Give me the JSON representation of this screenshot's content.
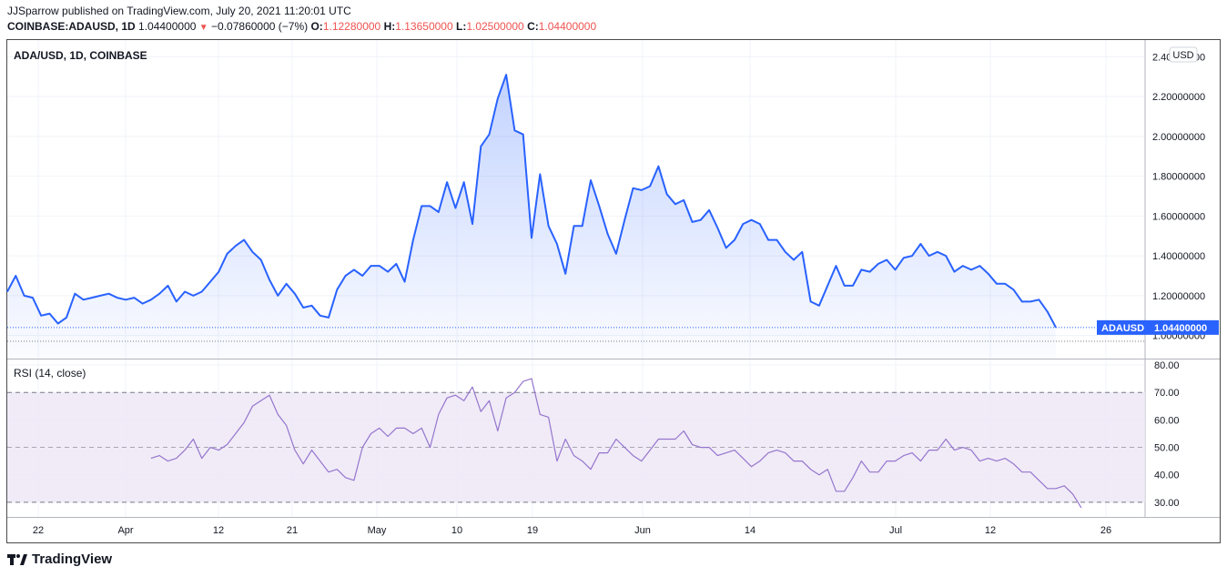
{
  "header": {
    "published": "JJSparrow published on TradingView.com, July 20, 2021 11:20:01 UTC",
    "symbol": "COINBASE:ADAUSD, 1D",
    "last": "1.04400000",
    "change": "−0.07860000 (−7%)",
    "o_label": "O:",
    "o_value": "1.12280000",
    "h_label": "H:",
    "h_value": "1.13650000",
    "l_label": "L:",
    "l_value": "1.02500000",
    "c_label": "C:",
    "c_value": "1.04400000"
  },
  "footer": {
    "brand": "TradingView"
  },
  "colors": {
    "price_line": "#2962ff",
    "rsi_line": "#9575cd",
    "rsi_band": "#ede7f6",
    "down": "#ef5350"
  },
  "chart_data": [
    {
      "type": "area",
      "title": "ADA/USD, 1D, COINBASE",
      "currency": "USD",
      "last_price_label": "ADAUSD",
      "last_price": "1.04400000",
      "ylim": [
        0.98,
        2.42
      ],
      "y_ticks": [
        "1.00000000",
        "1.20000000",
        "1.40000000",
        "1.60000000",
        "1.80000000",
        "2.00000000",
        "2.20000000",
        "2.40000000"
      ],
      "x_ticks": [
        "22",
        "Apr",
        "12",
        "21",
        "May",
        "10",
        "19",
        "Jun",
        "14",
        "Jul",
        "12",
        "26"
      ],
      "values": [
        1.22,
        1.3,
        1.2,
        1.19,
        1.1,
        1.11,
        1.06,
        1.09,
        1.21,
        1.18,
        1.19,
        1.2,
        1.21,
        1.19,
        1.18,
        1.19,
        1.16,
        1.18,
        1.21,
        1.25,
        1.17,
        1.22,
        1.2,
        1.22,
        1.27,
        1.32,
        1.41,
        1.45,
        1.48,
        1.42,
        1.38,
        1.28,
        1.2,
        1.26,
        1.21,
        1.14,
        1.15,
        1.1,
        1.09,
        1.23,
        1.3,
        1.33,
        1.3,
        1.35,
        1.35,
        1.32,
        1.36,
        1.27,
        1.48,
        1.65,
        1.65,
        1.62,
        1.77,
        1.64,
        1.77,
        1.56,
        1.95,
        2.01,
        2.19,
        2.31,
        2.03,
        2.01,
        1.49,
        1.81,
        1.55,
        1.46,
        1.31,
        1.55,
        1.55,
        1.78,
        1.65,
        1.51,
        1.41,
        1.58,
        1.74,
        1.73,
        1.75,
        1.85,
        1.71,
        1.66,
        1.68,
        1.57,
        1.58,
        1.63,
        1.54,
        1.44,
        1.48,
        1.56,
        1.58,
        1.56,
        1.48,
        1.48,
        1.42,
        1.38,
        1.42,
        1.17,
        1.15,
        1.25,
        1.35,
        1.25,
        1.25,
        1.33,
        1.32,
        1.36,
        1.38,
        1.33,
        1.39,
        1.4,
        1.46,
        1.4,
        1.42,
        1.4,
        1.32,
        1.35,
        1.33,
        1.35,
        1.31,
        1.26,
        1.26,
        1.23,
        1.17,
        1.17,
        1.18,
        1.12,
        1.04
      ]
    },
    {
      "type": "line",
      "title": "RSI (14, close)",
      "ylim": [
        25,
        82
      ],
      "y_ticks": [
        "30.00",
        "40.00",
        "50.00",
        "60.00",
        "70.00",
        "80.00"
      ],
      "band": [
        30,
        70
      ],
      "values": [
        null,
        null,
        null,
        null,
        null,
        null,
        null,
        null,
        null,
        null,
        null,
        null,
        null,
        null,
        null,
        null,
        null,
        46,
        47,
        45,
        46,
        49,
        53,
        46,
        50,
        49,
        51,
        55,
        59,
        65,
        67,
        69,
        62,
        58,
        49,
        44,
        49,
        45,
        41,
        42,
        39,
        38,
        50,
        55,
        57,
        54,
        57,
        57,
        55,
        57,
        50,
        62,
        68,
        69,
        67,
        72,
        63,
        67,
        56,
        68,
        70,
        74,
        75,
        62,
        61,
        45,
        53,
        47,
        45,
        42,
        48,
        48,
        53,
        50,
        47,
        45,
        49,
        53,
        53,
        53,
        56,
        51,
        50,
        50,
        47,
        48,
        49,
        46,
        43,
        45,
        48,
        49,
        48,
        45,
        45,
        42,
        40,
        42,
        34,
        34,
        39,
        45,
        41,
        41,
        45,
        45,
        47,
        48,
        45,
        49,
        49,
        53,
        49,
        50,
        49,
        45,
        46,
        45,
        46,
        44,
        41,
        41,
        38,
        35,
        35,
        36,
        33,
        28
      ]
    }
  ]
}
